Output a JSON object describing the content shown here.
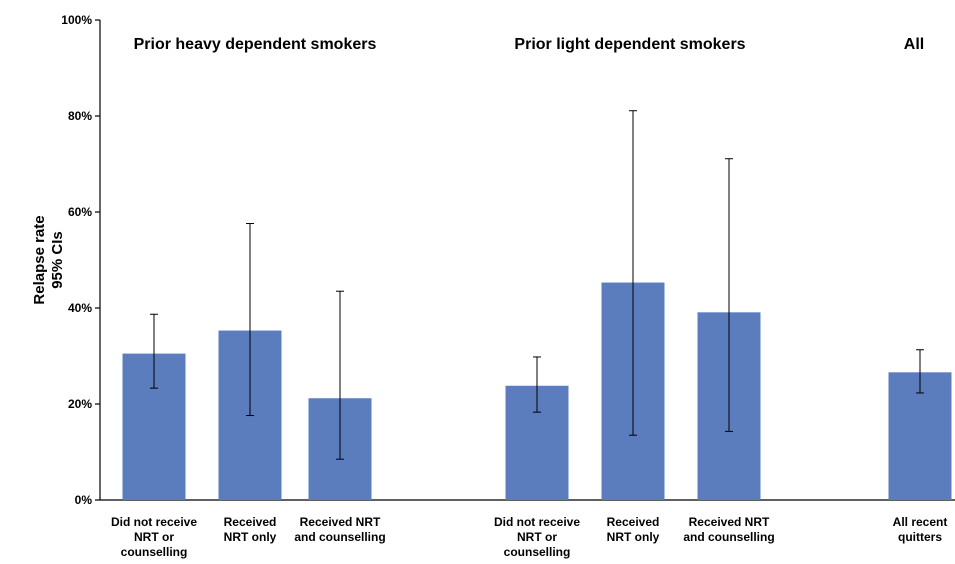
{
  "chart_data": {
    "type": "bar",
    "ylabel": [
      "Relapse rate",
      "95% CIs"
    ],
    "ylim": [
      0,
      100
    ],
    "yticks": [
      "0%",
      "20%",
      "40%",
      "60%",
      "80%",
      "100%"
    ],
    "ytick_values": [
      0,
      20,
      40,
      60,
      80,
      100
    ],
    "grid": false,
    "bar_color": "#5b7dbd",
    "error_bar_color": "#000000",
    "groups": [
      {
        "label": "Prior heavy dependent smokers",
        "first_bar": 0,
        "bar_count": 3
      },
      {
        "label": "Prior light dependent smokers",
        "first_bar": 3,
        "bar_count": 3
      },
      {
        "label": "All",
        "first_bar": 6,
        "bar_count": 1
      }
    ],
    "categories": [
      [
        "Did not receive",
        "NRT or",
        "counselling"
      ],
      [
        "Received",
        "NRT only"
      ],
      [
        "Received NRT",
        "and counselling"
      ],
      [
        "Did not receive",
        "NRT or",
        "counselling"
      ],
      [
        "Received",
        "NRT only"
      ],
      [
        "Received NRT",
        "and counselling"
      ],
      [
        "All recent",
        "quitters"
      ]
    ],
    "values": [
      30.5,
      35.3,
      21.2,
      23.8,
      45.3,
      39.1,
      26.6
    ],
    "ci_low": [
      23.3,
      17.6,
      8.5,
      18.3,
      13.5,
      14.3,
      22.3
    ],
    "ci_high": [
      38.7,
      57.6,
      43.5,
      29.8,
      81.1,
      71.1,
      31.3
    ]
  }
}
